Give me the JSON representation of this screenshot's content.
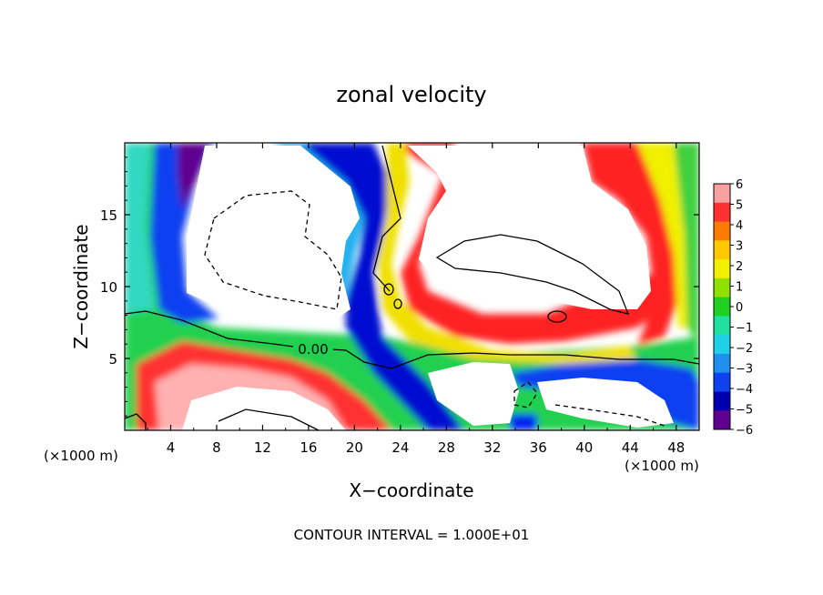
{
  "chart_data": {
    "type": "heatmap",
    "title": "zonal velocity",
    "xlabel": "X−coordinate",
    "ylabel": "Z−coordinate",
    "x_units_left": "(×1000 m)",
    "x_units_right": "(×1000 m)",
    "xlim": [
      0,
      50
    ],
    "ylim": [
      0,
      20
    ],
    "x_ticks": [
      4,
      8,
      12,
      16,
      20,
      24,
      28,
      32,
      36,
      40,
      44,
      48
    ],
    "y_ticks": [
      5,
      10,
      15
    ],
    "footer": "CONTOUR INTERVAL = 1.000E+01",
    "contour_label": "0.00",
    "colorbar": {
      "ticks": [
        6,
        5,
        4,
        3,
        2,
        1,
        0,
        -1,
        -2,
        -3,
        -4,
        -5,
        -6
      ],
      "tick_labels": [
        "6",
        "5",
        "4",
        "3",
        "2",
        "1",
        "0",
        "−1",
        "−2",
        "−3",
        "−4",
        "−5",
        "−6"
      ],
      "colors": [
        "#f6a0a0",
        "#ff3030",
        "#ff7a00",
        "#ffc800",
        "#f0f000",
        "#90e000",
        "#20d020",
        "#20e0a0",
        "#20d0e8",
        "#2090f0",
        "#1040f0",
        "#0000b0",
        "#600090"
      ]
    },
    "grid": false,
    "legend_placement": "right"
  }
}
